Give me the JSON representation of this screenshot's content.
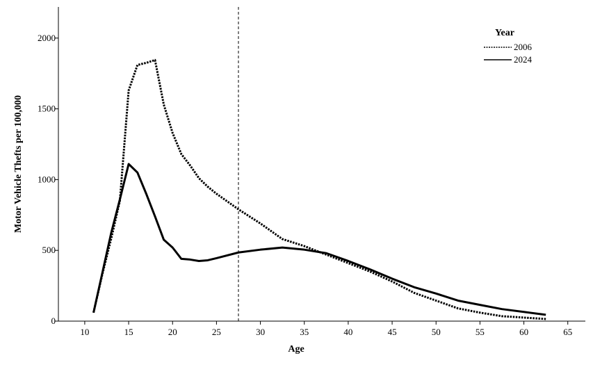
{
  "chart_data": {
    "type": "line",
    "title": "",
    "xlabel": "Age",
    "ylabel": "Motor Vehicle Thefts per 100,000",
    "xlim": [
      7,
      67
    ],
    "ylim": [
      0,
      2220
    ],
    "x_ticks": [
      10,
      15,
      20,
      25,
      30,
      35,
      40,
      45,
      50,
      55,
      60,
      65
    ],
    "y_ticks": [
      0,
      500,
      1000,
      1500,
      2000
    ],
    "reference_line": {
      "x": 27.5,
      "style": "dashed"
    },
    "legend": {
      "title": "Year",
      "placement": "top-right"
    },
    "grid": false,
    "series": [
      {
        "name": "2006",
        "style": "dotted",
        "color": "#000000",
        "points": [
          [
            11,
            60
          ],
          [
            12,
            330
          ],
          [
            13,
            580
          ],
          [
            14,
            850
          ],
          [
            15,
            1630
          ],
          [
            16,
            1810
          ],
          [
            17,
            1825
          ],
          [
            18,
            1845
          ],
          [
            19,
            1530
          ],
          [
            20,
            1330
          ],
          [
            21,
            1180
          ],
          [
            22,
            1100
          ],
          [
            23,
            1010
          ],
          [
            24,
            950
          ],
          [
            25,
            900
          ],
          [
            27.5,
            790
          ],
          [
            30,
            690
          ],
          [
            32.5,
            580
          ],
          [
            35,
            530
          ],
          [
            37.5,
            470
          ],
          [
            40,
            410
          ],
          [
            42.5,
            350
          ],
          [
            45,
            280
          ],
          [
            47.5,
            200
          ],
          [
            50,
            145
          ],
          [
            52.5,
            90
          ],
          [
            55,
            60
          ],
          [
            57.5,
            35
          ],
          [
            60,
            25
          ],
          [
            62.5,
            15
          ]
        ]
      },
      {
        "name": "2024",
        "style": "solid",
        "color": "#000000",
        "points": [
          [
            11,
            60
          ],
          [
            12,
            340
          ],
          [
            13,
            620
          ],
          [
            14,
            860
          ],
          [
            15,
            1110
          ],
          [
            16,
            1050
          ],
          [
            17,
            900
          ],
          [
            18,
            740
          ],
          [
            19,
            575
          ],
          [
            20,
            520
          ],
          [
            21,
            440
          ],
          [
            22,
            435
          ],
          [
            23,
            425
          ],
          [
            24,
            430
          ],
          [
            25,
            445
          ],
          [
            27.5,
            485
          ],
          [
            30,
            505
          ],
          [
            32.5,
            520
          ],
          [
            35,
            505
          ],
          [
            37.5,
            480
          ],
          [
            40,
            425
          ],
          [
            42.5,
            365
          ],
          [
            45,
            300
          ],
          [
            47.5,
            240
          ],
          [
            50,
            195
          ],
          [
            52.5,
            145
          ],
          [
            55,
            115
          ],
          [
            57.5,
            85
          ],
          [
            60,
            65
          ],
          [
            62.5,
            45
          ]
        ]
      }
    ]
  }
}
